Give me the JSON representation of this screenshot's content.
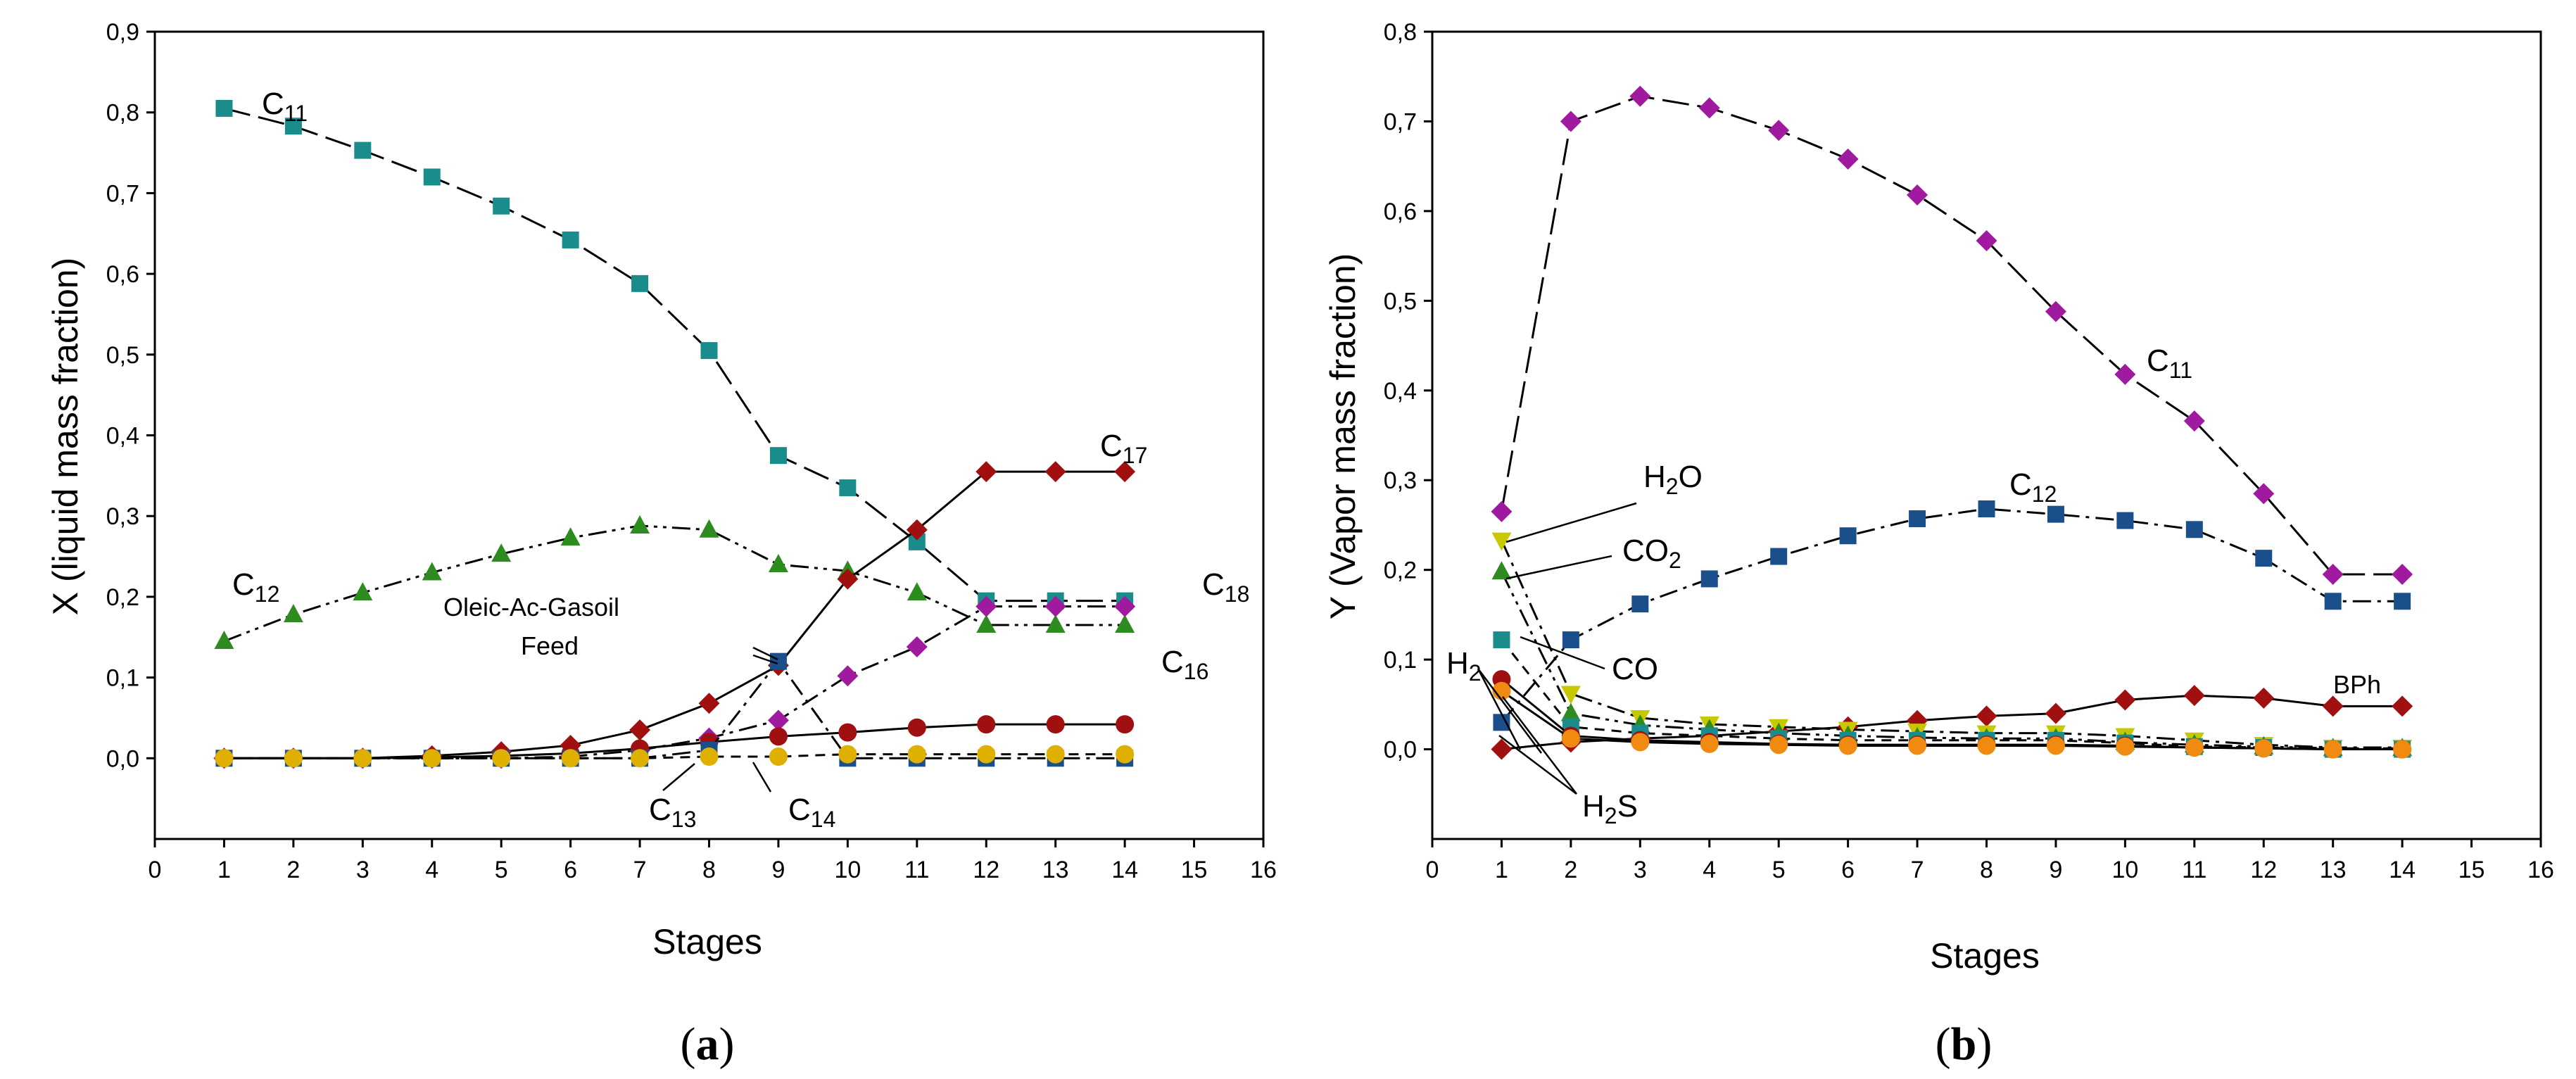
{
  "chart_data": [
    {
      "type": "line",
      "panel_label": "a",
      "xlabel": "Stages",
      "ylabel": "X (liquid mass fraction)",
      "xlim": [
        0,
        16
      ],
      "ylim": [
        -0.1,
        0.9
      ],
      "xticks": [
        0,
        1,
        2,
        3,
        4,
        5,
        6,
        7,
        8,
        9,
        10,
        11,
        12,
        13,
        14,
        15,
        16
      ],
      "yticks": [
        "0,0",
        "0,1",
        "0,2",
        "0,3",
        "0,4",
        "0,5",
        "0,6",
        "0,7",
        "0,8",
        "0,9"
      ],
      "x": [
        1,
        2,
        3,
        4,
        5,
        6,
        7,
        8,
        9,
        10,
        11,
        12,
        13,
        14
      ],
      "series": [
        {
          "name": "C11",
          "color": "#1a8c8c",
          "marker": "square",
          "dash": "long",
          "values": [
            0.805,
            0.783,
            0.753,
            0.72,
            0.684,
            0.642,
            0.588,
            0.505,
            0.375,
            0.335,
            0.268,
            0.195,
            0.195,
            0.195
          ]
        },
        {
          "name": "C12",
          "color": "#2e8b1f",
          "marker": "triangle",
          "dash": "dashdotdot",
          "values": [
            0.145,
            0.178,
            0.205,
            0.23,
            0.253,
            0.273,
            0.288,
            0.283,
            0.24,
            0.232,
            0.205,
            0.165,
            0.165,
            0.165
          ]
        },
        {
          "name": "C17",
          "color": "#a01010",
          "marker": "diamond",
          "dash": "solid",
          "values": [
            0.0,
            0.0,
            0.0,
            0.003,
            0.008,
            0.016,
            0.035,
            0.068,
            0.115,
            0.222,
            0.283,
            0.355,
            0.355,
            0.355
          ]
        },
        {
          "name": "C18",
          "color": "#a01aa0",
          "marker": "diamond",
          "dash": "dashdot",
          "values": [
            0.0,
            0.0,
            0.0,
            0.0,
            0.0,
            0.002,
            0.01,
            0.025,
            0.047,
            0.102,
            0.138,
            0.188,
            0.188,
            0.188
          ]
        },
        {
          "name": "C16",
          "color": "#a01010",
          "marker": "circle",
          "dash": "solid",
          "values": [
            0.0,
            0.0,
            0.0,
            0.001,
            0.003,
            0.006,
            0.012,
            0.02,
            0.027,
            0.032,
            0.038,
            0.042,
            0.042,
            0.042
          ]
        },
        {
          "name": "C13",
          "color": "#1a4f8c",
          "marker": "square",
          "dash": "dashdot",
          "values": [
            0.0,
            0.0,
            0.0,
            0.0,
            0.0,
            0.0,
            0.0,
            0.01,
            0.12,
            0.0,
            0.0,
            0.0,
            0.0,
            0.0
          ]
        },
        {
          "name": "C14",
          "color": "#e0b000",
          "marker": "circle",
          "dash": "dashed",
          "values": [
            0.0,
            0.0,
            0.0,
            0.0,
            0.0,
            0.0,
            0.0,
            0.002,
            0.002,
            0.005,
            0.005,
            0.005,
            0.005,
            0.005
          ]
        }
      ],
      "annotations": [
        {
          "text": "C",
          "sub": "11"
        },
        {
          "text": "C",
          "sub": "12"
        },
        {
          "text": "C",
          "sub": "17"
        },
        {
          "text": "C",
          "sub": "18"
        },
        {
          "text": "C",
          "sub": "16"
        },
        {
          "text": "C",
          "sub": "13"
        },
        {
          "text": "C",
          "sub": "14"
        },
        {
          "text": "Oleic-Ac-Gasoil"
        },
        {
          "text": "Feed"
        }
      ]
    },
    {
      "type": "line",
      "panel_label": "b",
      "xlabel": "Stages",
      "ylabel": "Y (Vapor mass fraction)",
      "xlim": [
        0,
        16
      ],
      "ylim": [
        -0.1,
        0.8
      ],
      "xticks": [
        0,
        1,
        2,
        3,
        4,
        5,
        6,
        7,
        8,
        9,
        10,
        11,
        12,
        13,
        14,
        15,
        16
      ],
      "yticks": [
        "0,0",
        "0,1",
        "0,2",
        "0,3",
        "0,4",
        "0,5",
        "0,6",
        "0,7",
        "0,8"
      ],
      "x": [
        1,
        2,
        3,
        4,
        5,
        6,
        7,
        8,
        9,
        10,
        11,
        12,
        13,
        14
      ],
      "series": [
        {
          "name": "C11",
          "color": "#a01aa0",
          "marker": "diamond",
          "dash": "long",
          "values": [
            0.265,
            0.7,
            0.728,
            0.715,
            0.69,
            0.658,
            0.618,
            0.567,
            0.488,
            0.418,
            0.366,
            0.285,
            0.195,
            0.195
          ]
        },
        {
          "name": "C12",
          "color": "#1a4f8c",
          "marker": "square",
          "dash": "dashdot",
          "values": [
            0.03,
            0.122,
            0.162,
            0.19,
            0.215,
            0.238,
            0.257,
            0.268,
            0.262,
            0.255,
            0.245,
            0.213,
            0.165,
            0.165
          ]
        },
        {
          "name": "BPh",
          "color": "#a01010",
          "marker": "diamond",
          "dash": "solid",
          "values": [
            0.0,
            0.008,
            0.012,
            0.015,
            0.02,
            0.025,
            0.032,
            0.037,
            0.04,
            0.055,
            0.06,
            0.057,
            0.048,
            0.048
          ]
        },
        {
          "name": "H2O",
          "color": "#c8c800",
          "marker": "triangle-down",
          "dash": "dashdot",
          "values": [
            0.233,
            0.062,
            0.035,
            0.028,
            0.025,
            0.022,
            0.02,
            0.018,
            0.018,
            0.015,
            0.01,
            0.005,
            0.002,
            0.002
          ]
        },
        {
          "name": "CO2",
          "color": "#2e8b1f",
          "marker": "triangle",
          "dash": "dashdotdot",
          "values": [
            0.198,
            0.04,
            0.027,
            0.022,
            0.018,
            0.015,
            0.013,
            0.012,
            0.012,
            0.008,
            0.005,
            0.003,
            0.001,
            0.001
          ]
        },
        {
          "name": "CO",
          "color": "#1a8c8c",
          "marker": "square",
          "dash": "dashed",
          "values": [
            0.122,
            0.025,
            0.018,
            0.015,
            0.012,
            0.01,
            0.01,
            0.01,
            0.01,
            0.007,
            0.003,
            0.002,
            0.0,
            0.0
          ]
        },
        {
          "name": "H2",
          "color": "#a01010",
          "marker": "circle",
          "dash": "solid",
          "values": [
            0.078,
            0.015,
            0.01,
            0.008,
            0.006,
            0.005,
            0.005,
            0.005,
            0.005,
            0.004,
            0.002,
            0.001,
            0.0,
            0.0
          ]
        },
        {
          "name": "H2S",
          "color": "#f08a10",
          "marker": "circle",
          "dash": "solid",
          "values": [
            0.065,
            0.012,
            0.008,
            0.006,
            0.005,
            0.004,
            0.004,
            0.004,
            0.004,
            0.003,
            0.002,
            0.001,
            0.0,
            0.0
          ]
        }
      ],
      "annotations": [
        {
          "text": "C",
          "sub": "11"
        },
        {
          "text": "C",
          "sub": "12"
        },
        {
          "text": "H",
          "sub": "2",
          "after": "O"
        },
        {
          "text": "CO",
          "sub": "2"
        },
        {
          "text": "CO"
        },
        {
          "text": "H",
          "sub": "2"
        },
        {
          "text": "H",
          "sub": "2",
          "after": "S"
        },
        {
          "text": "BPh"
        }
      ]
    }
  ]
}
